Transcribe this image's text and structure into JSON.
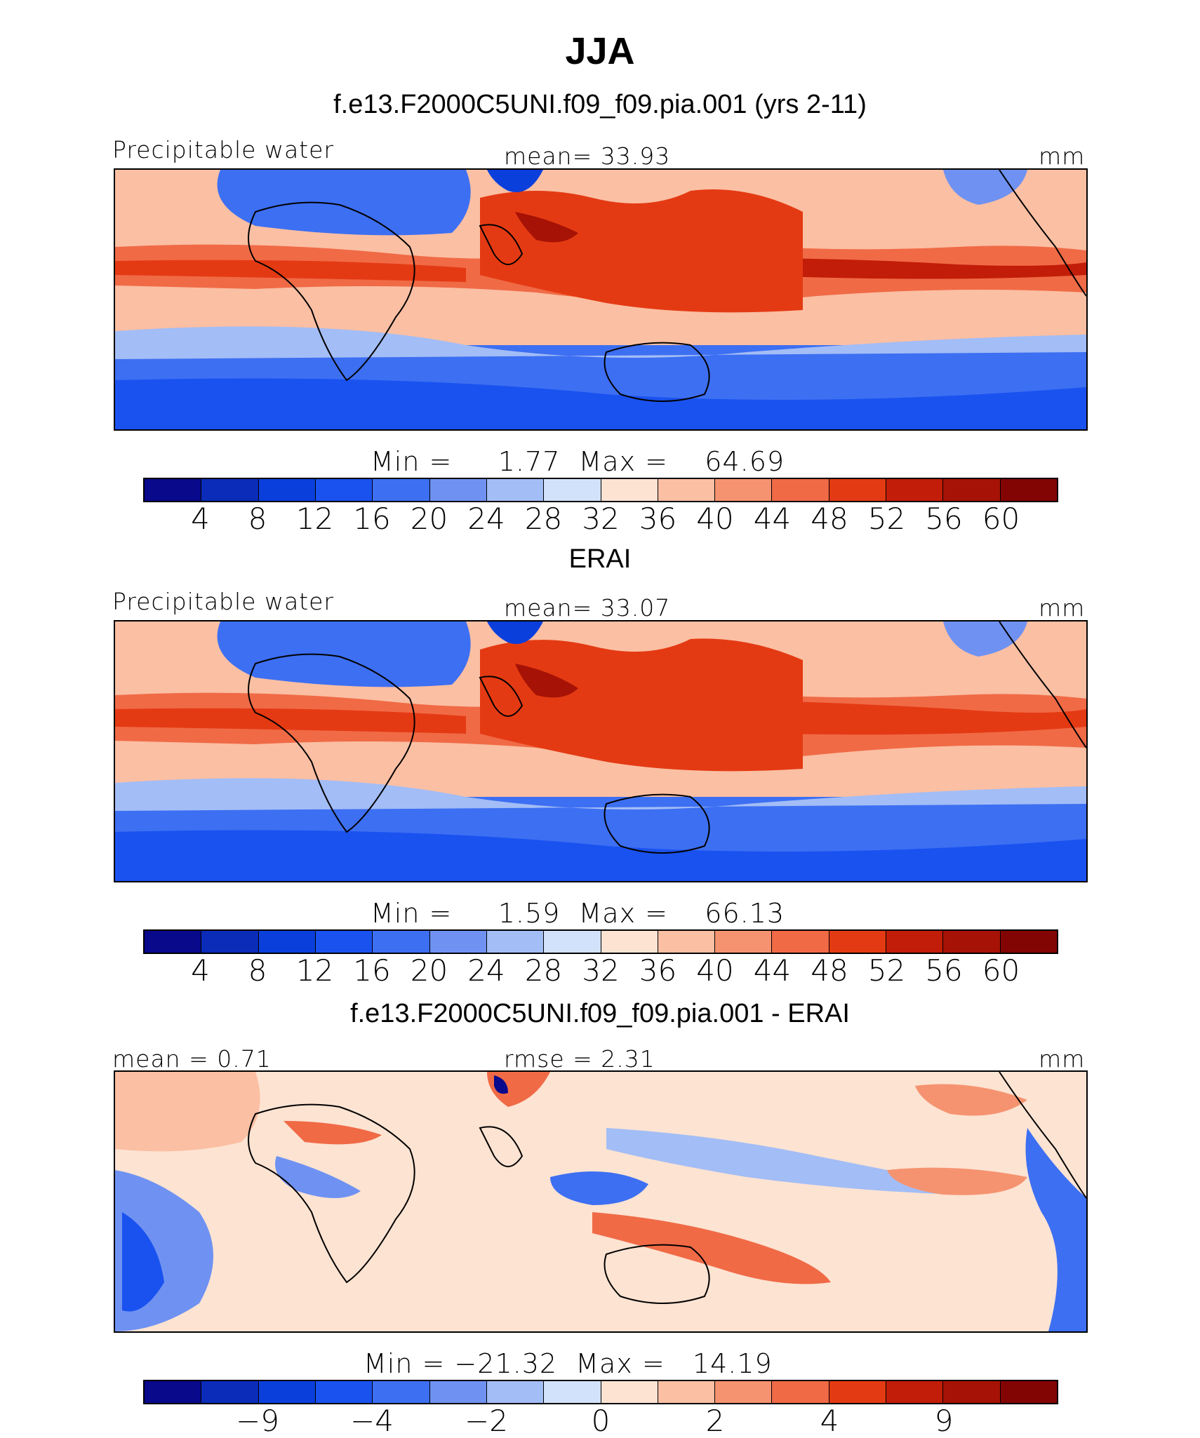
{
  "title": "JJA",
  "chart_data": [
    {
      "type": "heatmap",
      "title": "f.e13.F2000C5UNI.f09_f09.pia.001 (yrs 2-11)",
      "left_label": "Precipitable water",
      "center_label": "mean=   33.93",
      "units": "mm",
      "min_max": "Min =     1.77  Max =    64.69",
      "min": 1.77,
      "max": 64.69,
      "mean": 33.93,
      "levels": [
        "4",
        "8",
        "12",
        "16",
        "20",
        "24",
        "28",
        "32",
        "36",
        "40",
        "44",
        "48",
        "52",
        "56",
        "60"
      ],
      "colors": [
        "#08098b",
        "#0a2cb8",
        "#0a3fdc",
        "#1a52f0",
        "#3d6ff2",
        "#6f92f2",
        "#a3bdf6",
        "#d2e2fb",
        "#fde3d2",
        "#fbbfa3",
        "#f59370",
        "#f06a46",
        "#e43a13",
        "#c21d09",
        "#a61205",
        "#830503"
      ]
    },
    {
      "type": "heatmap",
      "title": "ERAI",
      "left_label": "Precipitable water",
      "center_label": "mean=   33.07",
      "units": "mm",
      "min_max": "Min =     1.59  Max =    66.13",
      "min": 1.59,
      "max": 66.13,
      "mean": 33.07,
      "levels": [
        "4",
        "8",
        "12",
        "16",
        "20",
        "24",
        "28",
        "32",
        "36",
        "40",
        "44",
        "48",
        "52",
        "56",
        "60"
      ],
      "colors": [
        "#08098b",
        "#0a2cb8",
        "#0a3fdc",
        "#1a52f0",
        "#3d6ff2",
        "#6f92f2",
        "#a3bdf6",
        "#d2e2fb",
        "#fde3d2",
        "#fbbfa3",
        "#f59370",
        "#f06a46",
        "#e43a13",
        "#c21d09",
        "#a61205",
        "#830503"
      ]
    },
    {
      "type": "heatmap",
      "title": "f.e13.F2000C5UNI.f09_f09.pia.001 - ERAI",
      "left_label": "mean =    0.71",
      "center_label": "rmse =    2.31",
      "units": "mm",
      "min_max": "Min = −21.32  Max =   14.19",
      "min": -21.32,
      "max": 14.19,
      "mean": 0.71,
      "rmse": 2.31,
      "levels": [
        "−9",
        "−4",
        "−2",
        "0",
        "2",
        "4",
        "9"
      ],
      "colors": [
        "#08098b",
        "#0a2cb8",
        "#0a3fdc",
        "#1a52f0",
        "#3d6ff2",
        "#6f92f2",
        "#a3bdf6",
        "#d2e2fb",
        "#fde3d2",
        "#fbbfa3",
        "#f59370",
        "#f06a46",
        "#e43a13",
        "#c21d09",
        "#a61205",
        "#830503"
      ]
    }
  ]
}
